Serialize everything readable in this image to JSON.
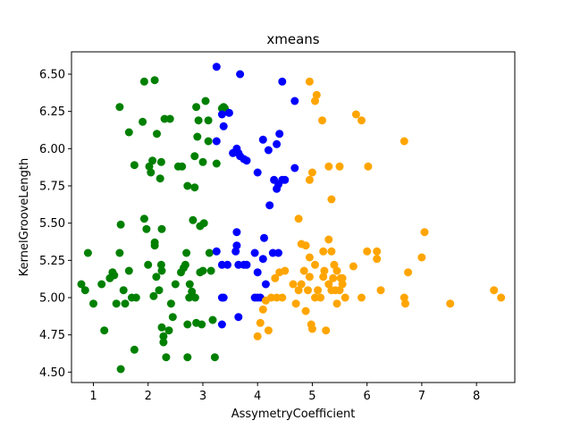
{
  "chart_data": {
    "type": "scatter",
    "title": "xmeans",
    "xlabel": "AssymetryCoefficient",
    "ylabel": "KernelGrooveLength",
    "xlim": [
      0.6,
      8.7
    ],
    "ylim": [
      4.43,
      6.65
    ],
    "xticks": [
      1,
      2,
      3,
      4,
      5,
      6,
      7,
      8
    ],
    "yticks": [
      4.5,
      4.75,
      5.0,
      5.25,
      5.5,
      5.75,
      6.0,
      6.25,
      6.5
    ],
    "ytick_labels": [
      "4.50",
      "4.75",
      "5.00",
      "5.25",
      "5.50",
      "5.75",
      "6.00",
      "6.25",
      "6.50"
    ],
    "grid": false,
    "legend": "none",
    "series": [
      {
        "color": "#008000",
        "points": [
          [
            0.78,
            5.09
          ],
          [
            0.85,
            5.05
          ],
          [
            0.9,
            5.3
          ],
          [
            1.0,
            4.96
          ],
          [
            1.15,
            5.09
          ],
          [
            1.2,
            4.78
          ],
          [
            1.3,
            5.13
          ],
          [
            1.35,
            5.17
          ],
          [
            1.38,
            5.15
          ],
          [
            1.42,
            4.96
          ],
          [
            1.48,
            5.3
          ],
          [
            1.5,
            5.49
          ],
          [
            1.5,
            4.52
          ],
          [
            1.55,
            5.05
          ],
          [
            1.58,
            4.96
          ],
          [
            1.65,
            5.18
          ],
          [
            1.7,
            5.0
          ],
          [
            1.75,
            4.65
          ],
          [
            1.78,
            5.0
          ],
          [
            1.48,
            6.28
          ],
          [
            1.65,
            6.11
          ],
          [
            1.75,
            5.89
          ],
          [
            1.9,
            6.18
          ],
          [
            1.93,
            5.53
          ],
          [
            1.97,
            5.46
          ],
          [
            2.0,
            5.22
          ],
          [
            2.02,
            5.88
          ],
          [
            2.05,
            5.84
          ],
          [
            2.08,
            5.92
          ],
          [
            2.1,
            5.01
          ],
          [
            2.12,
            5.37
          ],
          [
            2.12,
            5.35
          ],
          [
            2.15,
            5.14
          ],
          [
            2.16,
            6.1
          ],
          [
            2.2,
            5.05
          ],
          [
            2.22,
            5.8
          ],
          [
            2.24,
            5.91
          ],
          [
            2.24,
            5.22
          ],
          [
            2.25,
            5.18
          ],
          [
            2.25,
            4.8
          ],
          [
            2.28,
            4.74
          ],
          [
            2.28,
            4.7
          ],
          [
            2.33,
            4.6
          ],
          [
            2.25,
            5.46
          ],
          [
            2.3,
            6.2
          ],
          [
            1.93,
            6.45
          ],
          [
            2.12,
            6.46
          ],
          [
            2.38,
            4.78
          ],
          [
            2.4,
            6.2
          ],
          [
            2.42,
            4.96
          ],
          [
            2.45,
            4.87
          ],
          [
            2.5,
            5.09
          ],
          [
            2.55,
            5.88
          ],
          [
            2.6,
            5.17
          ],
          [
            2.62,
            5.88
          ],
          [
            2.65,
            5.2
          ],
          [
            2.68,
            5.22
          ],
          [
            2.7,
            5.3
          ],
          [
            2.72,
            4.82
          ],
          [
            2.72,
            4.6
          ],
          [
            2.72,
            5.75
          ],
          [
            2.75,
            5.0
          ],
          [
            2.76,
            5.09
          ],
          [
            2.8,
            5.04
          ],
          [
            2.82,
            5.52
          ],
          [
            2.85,
            5.74
          ],
          [
            2.85,
            5.95
          ],
          [
            2.86,
            5.0
          ],
          [
            2.88,
            4.83
          ],
          [
            2.88,
            6.28
          ],
          [
            2.9,
            6.08
          ],
          [
            2.92,
            6.19
          ],
          [
            2.95,
            5.17
          ],
          [
            2.95,
            5.48
          ],
          [
            2.98,
            4.82
          ],
          [
            3.0,
            5.18
          ],
          [
            3.0,
            5.91
          ],
          [
            3.02,
            5.5
          ],
          [
            3.05,
            6.32
          ],
          [
            3.1,
            6.05
          ],
          [
            3.1,
            6.19
          ],
          [
            3.12,
            5.3
          ],
          [
            3.15,
            5.18
          ],
          [
            3.18,
            4.85
          ],
          [
            3.22,
            4.6
          ],
          [
            3.25,
            5.9
          ],
          [
            3.35,
            6.27
          ],
          [
            3.38,
            6.28
          ],
          [
            3.4,
            6.27
          ]
        ]
      },
      {
        "color": "#0000ff",
        "points": [
          [
            3.25,
            6.55
          ],
          [
            3.68,
            6.5
          ],
          [
            4.45,
            6.45
          ],
          [
            4.68,
            6.32
          ],
          [
            3.35,
            6.23
          ],
          [
            3.48,
            6.24
          ],
          [
            3.38,
            6.15
          ],
          [
            3.25,
            6.05
          ],
          [
            3.55,
            5.97
          ],
          [
            3.62,
            6.0
          ],
          [
            3.65,
            5.97
          ],
          [
            3.68,
            5.95
          ],
          [
            3.75,
            5.93
          ],
          [
            3.8,
            5.92
          ],
          [
            3.62,
            5.35
          ],
          [
            4.1,
            6.06
          ],
          [
            4.2,
            5.99
          ],
          [
            4.35,
            6.03
          ],
          [
            4.4,
            6.1
          ],
          [
            4.0,
            5.84
          ],
          [
            4.3,
            5.79
          ],
          [
            4.35,
            5.73
          ],
          [
            4.38,
            5.76
          ],
          [
            4.45,
            5.79
          ],
          [
            4.5,
            5.79
          ],
          [
            4.68,
            5.87
          ],
          [
            4.22,
            5.62
          ],
          [
            3.25,
            5.31
          ],
          [
            3.35,
            5.22
          ],
          [
            3.45,
            5.22
          ],
          [
            3.6,
            5.31
          ],
          [
            3.62,
            5.44
          ],
          [
            3.65,
            5.22
          ],
          [
            3.75,
            5.22
          ],
          [
            3.8,
            5.22
          ],
          [
            3.35,
            5.0
          ],
          [
            3.38,
            5.0
          ],
          [
            3.35,
            4.82
          ],
          [
            3.65,
            4.87
          ],
          [
            3.95,
            5.3
          ],
          [
            4.0,
            5.17
          ],
          [
            4.0,
            5.0
          ],
          [
            4.05,
            5.0
          ],
          [
            4.1,
            5.26
          ],
          [
            4.12,
            5.4
          ],
          [
            4.15,
            5.09
          ],
          [
            4.28,
            5.3
          ],
          [
            4.38,
            5.3
          ],
          [
            3.95,
            5.0
          ]
        ]
      },
      {
        "color": "#ffa500",
        "points": [
          [
            4.95,
            6.45
          ],
          [
            5.05,
            6.32
          ],
          [
            5.08,
            6.36
          ],
          [
            5.18,
            6.19
          ],
          [
            5.8,
            6.23
          ],
          [
            5.9,
            6.19
          ],
          [
            6.68,
            6.05
          ],
          [
            5.0,
            5.84
          ],
          [
            4.95,
            5.79
          ],
          [
            5.3,
            5.88
          ],
          [
            5.5,
            5.88
          ],
          [
            6.02,
            5.88
          ],
          [
            5.35,
            5.66
          ],
          [
            4.75,
            5.53
          ],
          [
            4.8,
            5.36
          ],
          [
            4.88,
            5.35
          ],
          [
            4.95,
            5.27
          ],
          [
            5.05,
            5.22
          ],
          [
            5.2,
            5.31
          ],
          [
            5.3,
            5.39
          ],
          [
            5.35,
            5.31
          ],
          [
            5.4,
            5.22
          ],
          [
            5.45,
            5.18
          ],
          [
            5.55,
            5.13
          ],
          [
            5.75,
            5.21
          ],
          [
            6.0,
            5.31
          ],
          [
            6.18,
            5.31
          ],
          [
            6.18,
            5.26
          ],
          [
            4.0,
            4.74
          ],
          [
            4.05,
            4.83
          ],
          [
            4.1,
            4.92
          ],
          [
            4.15,
            4.98
          ],
          [
            4.2,
            4.78
          ],
          [
            4.25,
            5.0
          ],
          [
            4.32,
            5.13
          ],
          [
            4.35,
            5.0
          ],
          [
            4.4,
            5.17
          ],
          [
            4.45,
            5.0
          ],
          [
            4.5,
            5.18
          ],
          [
            4.65,
            5.09
          ],
          [
            4.7,
            4.96
          ],
          [
            4.75,
            5.05
          ],
          [
            4.8,
            5.09
          ],
          [
            4.85,
            5.18
          ],
          [
            4.88,
            4.91
          ],
          [
            4.92,
            5.05
          ],
          [
            4.95,
            5.14
          ],
          [
            4.98,
            4.82
          ],
          [
            5.0,
            4.79
          ],
          [
            5.05,
            5.0
          ],
          [
            5.1,
            5.05
          ],
          [
            5.15,
            5.0
          ],
          [
            5.2,
            5.14
          ],
          [
            5.22,
            5.18
          ],
          [
            5.25,
            4.78
          ],
          [
            5.3,
            5.09
          ],
          [
            5.35,
            5.05
          ],
          [
            5.38,
            5.13
          ],
          [
            5.42,
            5.05
          ],
          [
            5.45,
            4.96
          ],
          [
            5.5,
            5.05
          ],
          [
            5.52,
            5.13
          ],
          [
            5.55,
            5.09
          ],
          [
            5.6,
            5.0
          ],
          [
            5.9,
            5.0
          ],
          [
            6.25,
            5.05
          ],
          [
            6.68,
            5.0
          ],
          [
            6.7,
            4.96
          ],
          [
            6.75,
            5.17
          ],
          [
            7.0,
            5.27
          ],
          [
            7.05,
            5.44
          ],
          [
            7.52,
            4.96
          ],
          [
            8.32,
            5.05
          ],
          [
            8.45,
            5.0
          ]
        ]
      }
    ]
  }
}
